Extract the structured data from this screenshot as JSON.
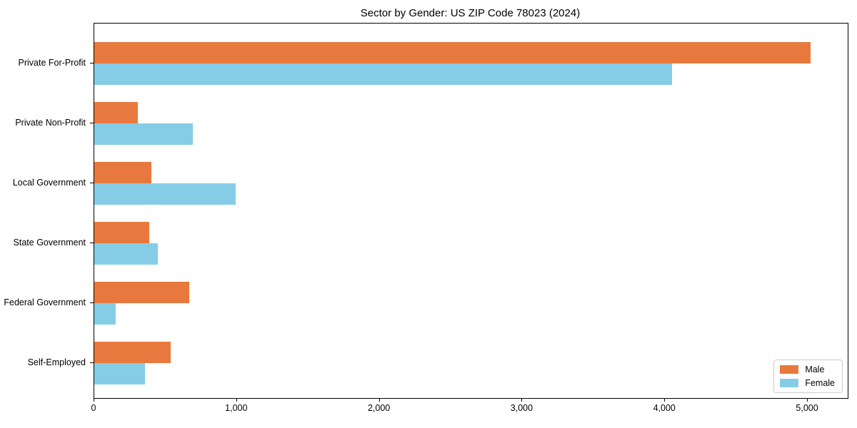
{
  "chart_data": {
    "type": "bar",
    "orientation": "horizontal",
    "title": "Sector by Gender: US ZIP Code 78023 (2024)",
    "categories": [
      "Private For-Profit",
      "Private Non-Profit",
      "Local Government",
      "State Government",
      "Federal Government",
      "Self-Employed"
    ],
    "series": [
      {
        "name": "Male",
        "color": "#e8793e",
        "values": [
          5020,
          305,
          400,
          385,
          665,
          535
        ]
      },
      {
        "name": "Female",
        "color": "#85cde6",
        "values": [
          4050,
          690,
          990,
          445,
          150,
          355
        ]
      }
    ],
    "xlabel": "",
    "ylabel": "",
    "xlim": [
      0,
      5280
    ],
    "xticks": [
      0,
      1000,
      2000,
      3000,
      4000,
      5000
    ],
    "xtick_labels": [
      "0",
      "1,000",
      "2,000",
      "3,000",
      "4,000",
      "5,000"
    ],
    "grid": false,
    "legend": {
      "position": "lower right",
      "entries": [
        "Male",
        "Female"
      ]
    }
  }
}
